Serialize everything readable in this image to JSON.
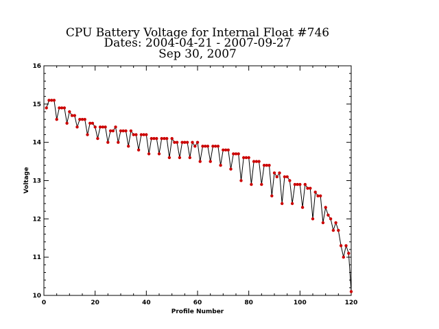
{
  "chart_data": {
    "type": "line",
    "title_lines": [
      "CPU Battery Voltage for Internal Float #746",
      "Dates:  2004-04-21 -  2007-09-27",
      "Sep 30, 2007"
    ],
    "xlabel": "Profile Number",
    "ylabel": "Voltage",
    "xlim": [
      0,
      120
    ],
    "ylim": [
      10,
      16
    ],
    "xticks": [
      0,
      20,
      40,
      60,
      80,
      100,
      120
    ],
    "yticks": [
      10,
      11,
      12,
      13,
      14,
      15,
      16
    ],
    "grid": false,
    "line_color": "#000000",
    "marker_color": "#cc0000",
    "series": [
      {
        "x": [
          1,
          2,
          3,
          4,
          5,
          6,
          7,
          8,
          9,
          10,
          11,
          12,
          13,
          14,
          15,
          16,
          17,
          18,
          19,
          20,
          21,
          22,
          23,
          24,
          25,
          26,
          27,
          28,
          29,
          30,
          31,
          32,
          33,
          34,
          35,
          36,
          37,
          38,
          39,
          40,
          41,
          42,
          43,
          44,
          45,
          46,
          47,
          48,
          49,
          50,
          51,
          52,
          53,
          54,
          55,
          56,
          57,
          58,
          59,
          60,
          61,
          62,
          63,
          64,
          65,
          66,
          67,
          68,
          69,
          70,
          71,
          72,
          73,
          74,
          75,
          76,
          77,
          78,
          79,
          80,
          81,
          82,
          83,
          84,
          85,
          86,
          87,
          88,
          89,
          90,
          91,
          92,
          93,
          94,
          95,
          96,
          97,
          98,
          99,
          100,
          101,
          102,
          103,
          104,
          105,
          106,
          107,
          108,
          109,
          110,
          111,
          112,
          113,
          114,
          115,
          116,
          117,
          118,
          119,
          120
        ],
        "y": [
          14.9,
          15.1,
          15.1,
          15.1,
          14.6,
          14.9,
          14.9,
          14.9,
          14.5,
          14.8,
          14.7,
          14.7,
          14.4,
          14.6,
          14.6,
          14.6,
          14.2,
          14.5,
          14.5,
          14.4,
          14.1,
          14.4,
          14.4,
          14.4,
          14.0,
          14.3,
          14.3,
          14.4,
          14.0,
          14.3,
          14.3,
          14.3,
          13.9,
          14.3,
          14.2,
          14.2,
          13.8,
          14.2,
          14.2,
          14.2,
          13.7,
          14.1,
          14.1,
          14.1,
          13.7,
          14.1,
          14.1,
          14.1,
          13.6,
          14.1,
          14.0,
          14.0,
          13.6,
          14.0,
          14.0,
          14.0,
          13.6,
          14.0,
          13.9,
          14.0,
          13.5,
          13.9,
          13.9,
          13.9,
          13.5,
          13.9,
          13.9,
          13.9,
          13.4,
          13.8,
          13.8,
          13.8,
          13.3,
          13.7,
          13.7,
          13.7,
          13.0,
          13.6,
          13.6,
          13.6,
          12.9,
          13.5,
          13.5,
          13.5,
          12.9,
          13.4,
          13.4,
          13.4,
          12.6,
          13.2,
          13.1,
          13.2,
          12.4,
          13.1,
          13.1,
          13.0,
          12.4,
          12.9,
          12.9,
          12.9,
          12.3,
          12.9,
          12.8,
          12.8,
          12.0,
          12.7,
          12.6,
          12.6,
          11.9,
          12.3,
          12.1,
          12.0,
          11.7,
          11.9,
          11.7,
          11.3,
          11.0,
          11.3,
          11.1,
          10.1
        ]
      }
    ]
  }
}
